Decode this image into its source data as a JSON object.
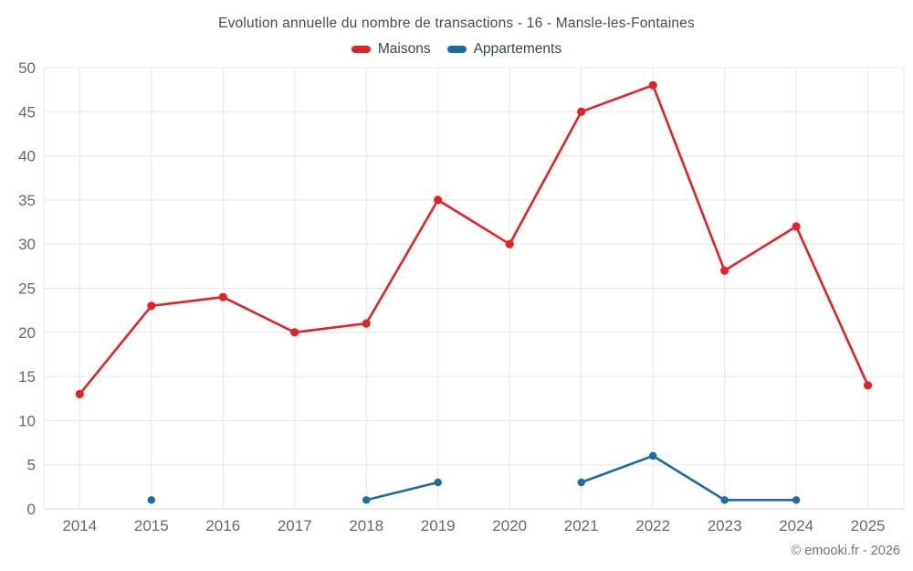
{
  "chart": {
    "title": "Evolution annuelle du nombre de transactions - 16 - Mansle-les-Fontaines",
    "legend": {
      "maisons": "Maisons",
      "appartements": "Appartements"
    }
  },
  "chart_data": {
    "type": "line",
    "title": "Evolution annuelle du nombre de transactions - 16 - Mansle-les-Fontaines",
    "categories": [
      "2014",
      "2015",
      "2016",
      "2017",
      "2018",
      "2019",
      "2020",
      "2021",
      "2022",
      "2023",
      "2024",
      "2025"
    ],
    "series": [
      {
        "name": "Maisons",
        "color": "#e02329",
        "values": [
          13,
          23,
          24,
          20,
          21,
          35,
          30,
          45,
          48,
          27,
          32,
          14
        ]
      },
      {
        "name": "Appartements",
        "color": "#1b6ca3",
        "values": [
          null,
          1,
          null,
          null,
          1,
          3,
          null,
          3,
          6,
          1,
          1,
          null
        ]
      }
    ],
    "xlabel": "",
    "ylabel": "",
    "ylim": [
      0,
      50
    ],
    "ytick_step": 5,
    "yticks": [
      0,
      5,
      10,
      15,
      20,
      25,
      30,
      35,
      40,
      45,
      50
    ],
    "grid": true,
    "legend_position": "top"
  },
  "footer": {
    "copyright": "© emooki.fr - 2026"
  },
  "colors": {
    "grid_line": "#e7e7e7",
    "axis_line": "#d9d9d9",
    "tick_label": "#696969",
    "title_text": "#414d56"
  }
}
